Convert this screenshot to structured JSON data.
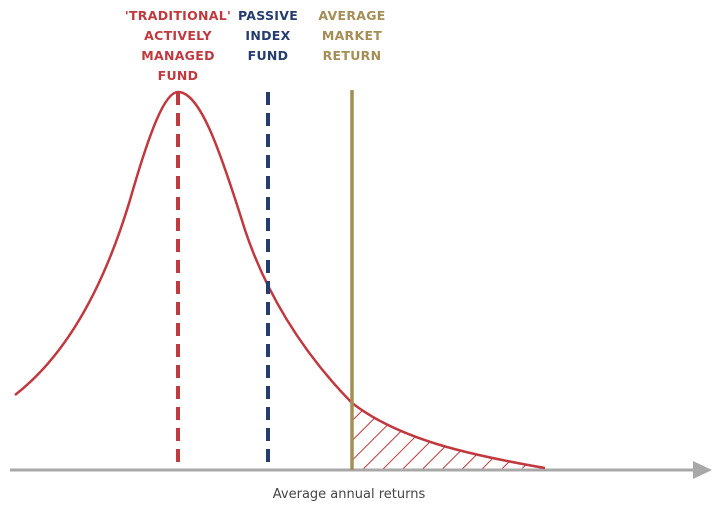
{
  "labels": [
    {
      "lines": [
        "'TRADITIONAL'",
        "ACTIVELY",
        "MANAGED",
        "FUND"
      ]
    },
    {
      "lines": [
        "PASSIVE",
        "INDEX",
        "FUND"
      ]
    },
    {
      "lines": [
        "AVERAGE",
        "MARKET",
        "RETURN"
      ]
    }
  ],
  "x_axis_label": "Average annual returns"
}
